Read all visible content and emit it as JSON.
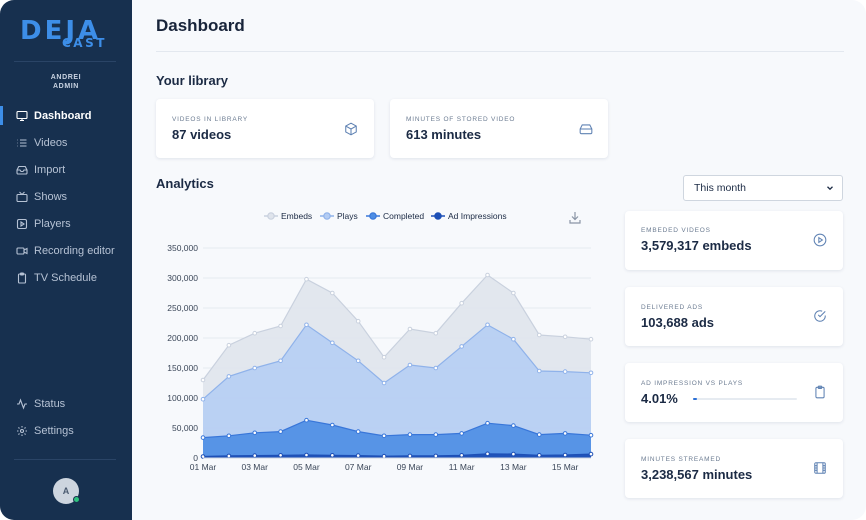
{
  "brand": {
    "logo_main": "DEJA",
    "logo_sub": "CAST"
  },
  "user": {
    "first": "ANDREI",
    "role": "ADMIN",
    "initial": "A"
  },
  "sidebar": {
    "items": [
      {
        "label": "Dashboard",
        "icon": "monitor-icon"
      },
      {
        "label": "Videos",
        "icon": "list-icon"
      },
      {
        "label": "Import",
        "icon": "inbox-icon"
      },
      {
        "label": "Shows",
        "icon": "tv-icon"
      },
      {
        "label": "Players",
        "icon": "play-square-icon"
      },
      {
        "label": "Recording editor",
        "icon": "video-camera-icon"
      },
      {
        "label": "TV Schedule",
        "icon": "clipboard-icon"
      }
    ],
    "bottom": [
      {
        "label": "Status",
        "icon": "activity-icon"
      },
      {
        "label": "Settings",
        "icon": "gear-icon"
      }
    ]
  },
  "page": {
    "title": "Dashboard"
  },
  "library": {
    "title": "Your library",
    "cards": [
      {
        "label": "VIDEOS IN LIBRARY",
        "value": "87 videos",
        "icon": "box-icon"
      },
      {
        "label": "MINUTES OF STORED VIDEO",
        "value": "613 minutes",
        "icon": "hard-drive-icon"
      }
    ]
  },
  "analytics": {
    "title": "Analytics",
    "period": "This month",
    "stats": [
      {
        "label": "EMBEDED VIDEOS",
        "value": "3,579,317 embeds",
        "icon": "play-circle-icon"
      },
      {
        "label": "DELIVERED ADS",
        "value": "103,688 ads",
        "icon": "check-circle-icon"
      },
      {
        "label": "AD IMPRESSION VS PLAYS",
        "value": "4.01%",
        "icon": "clipboard-icon",
        "progress": 0.0401
      },
      {
        "label": "MINUTES STREAMED",
        "value": "3,238,567 minutes",
        "icon": "film-icon"
      }
    ]
  },
  "colors": {
    "sidebar_bg": "#17304f",
    "accent": "#3d8ee8",
    "embeds": "#dfe4ec",
    "plays": "#b3ccf3",
    "completed": "#4d8de4",
    "ad_impressions": "#1d4fb6"
  },
  "chart_data": {
    "type": "area",
    "x": [
      "01 Mar",
      "02 Mar",
      "03 Mar",
      "04 Mar",
      "05 Mar",
      "06 Mar",
      "07 Mar",
      "08 Mar",
      "09 Mar",
      "10 Mar",
      "11 Mar",
      "12 Mar",
      "13 Mar",
      "14 Mar",
      "15 Mar",
      "16 Mar"
    ],
    "x_tick_labels": [
      "01 Mar",
      "03 Mar",
      "05 Mar",
      "07 Mar",
      "09 Mar",
      "11 Mar",
      "13 Mar",
      "15 Mar"
    ],
    "ylim": [
      0,
      350000
    ],
    "y_ticks": [
      "0",
      "50,000",
      "100,000",
      "150,000",
      "200,000",
      "250,000",
      "300,000",
      "350,000"
    ],
    "legend_position": "top-center",
    "series": [
      {
        "name": "Embeds",
        "values": [
          130000,
          188000,
          208000,
          220000,
          298000,
          275000,
          228000,
          168000,
          215000,
          208000,
          258000,
          305000,
          275000,
          205000,
          202000,
          198000
        ]
      },
      {
        "name": "Plays",
        "values": [
          98000,
          136000,
          150000,
          162000,
          222000,
          192000,
          162000,
          125000,
          155000,
          150000,
          186000,
          222000,
          198000,
          145000,
          144000,
          142000
        ]
      },
      {
        "name": "Completed",
        "values": [
          34000,
          37000,
          42000,
          44000,
          63000,
          55000,
          44000,
          37000,
          39000,
          39000,
          41000,
          58000,
          54000,
          39000,
          41000,
          38000
        ]
      },
      {
        "name": "Ad Impressions",
        "values": [
          2500,
          3500,
          4000,
          4500,
          5000,
          4500,
          4000,
          3000,
          3500,
          3500,
          4500,
          7000,
          6500,
          4500,
          5000,
          6500
        ]
      }
    ]
  }
}
